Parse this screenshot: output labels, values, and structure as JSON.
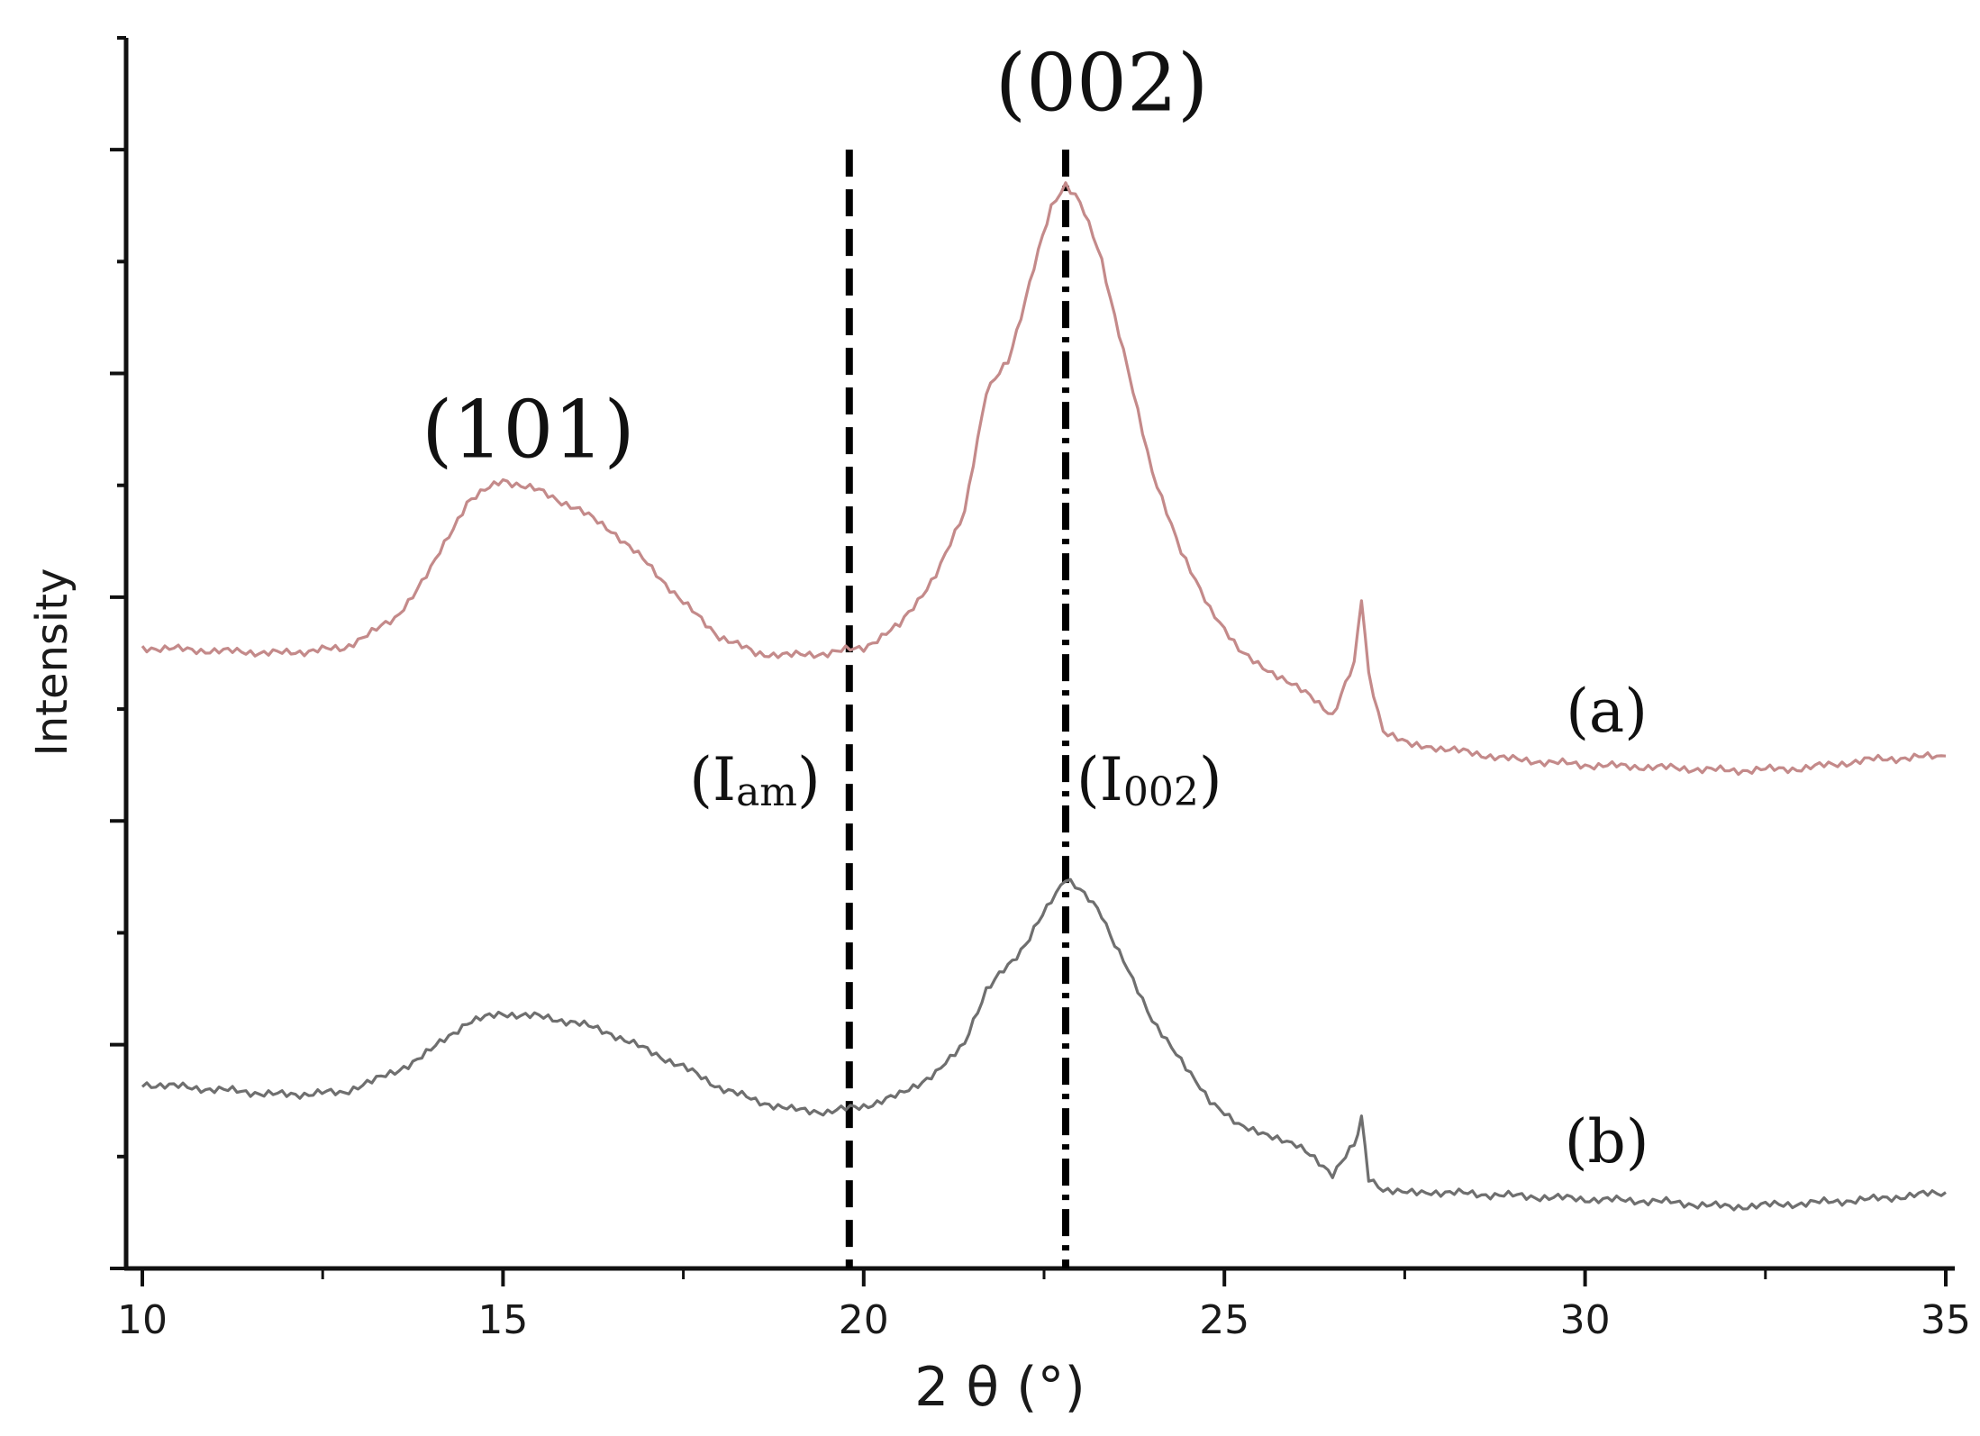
{
  "chart_data": {
    "type": "line",
    "title": "",
    "xlabel": "2 θ (°)",
    "ylabel": "Intensity",
    "xlim": [
      10,
      35
    ],
    "ylim": [
      0,
      11
    ],
    "x_ticks": [
      10,
      15,
      20,
      25,
      30,
      35
    ],
    "x_tick_labels": [
      "10",
      "15",
      "20",
      "25",
      "30",
      "35"
    ],
    "y_ticks": [
      0,
      1,
      2,
      3,
      4,
      5,
      6,
      7,
      8,
      9,
      10,
      11
    ],
    "y_tick_labels_shown": false,
    "grid": false,
    "series": [
      {
        "name": "(a)",
        "color": "#c48a8a",
        "x": [
          10.0,
          11.0,
          12.0,
          12.8,
          13.5,
          14.0,
          14.5,
          15.0,
          15.5,
          16.0,
          16.5,
          17.0,
          17.5,
          18.0,
          18.5,
          19.0,
          19.5,
          20.0,
          20.5,
          21.0,
          21.4,
          21.7,
          22.0,
          22.3,
          22.6,
          22.8,
          23.0,
          23.3,
          23.6,
          24.0,
          24.4,
          24.8,
          25.2,
          25.6,
          26.0,
          26.5,
          26.8,
          26.9,
          27.0,
          27.2,
          27.6,
          28.0,
          29.0,
          30.0,
          31.0,
          32.0,
          33.0,
          34.0,
          35.0
        ],
        "y": [
          5.55,
          5.52,
          5.5,
          5.55,
          5.8,
          6.25,
          6.85,
          7.05,
          6.95,
          6.8,
          6.6,
          6.3,
          5.95,
          5.65,
          5.5,
          5.48,
          5.5,
          5.55,
          5.75,
          6.2,
          6.75,
          7.85,
          8.1,
          8.8,
          9.5,
          9.7,
          9.55,
          9.0,
          8.2,
          7.1,
          6.4,
          5.9,
          5.55,
          5.35,
          5.2,
          4.95,
          5.4,
          6.0,
          5.3,
          4.8,
          4.7,
          4.65,
          4.55,
          4.5,
          4.48,
          4.45,
          4.47,
          4.55,
          4.58
        ]
      },
      {
        "name": "(b)",
        "color": "#6f6f6f",
        "x": [
          10.0,
          11.0,
          12.0,
          12.8,
          13.5,
          14.0,
          14.5,
          15.0,
          15.5,
          16.0,
          16.5,
          17.0,
          17.5,
          18.0,
          18.5,
          19.0,
          19.5,
          20.0,
          20.5,
          21.0,
          21.4,
          21.7,
          22.0,
          22.3,
          22.6,
          22.8,
          23.0,
          23.3,
          23.6,
          24.0,
          24.4,
          24.8,
          25.2,
          25.6,
          26.0,
          26.5,
          26.8,
          26.9,
          27.0,
          27.2,
          27.6,
          28.0,
          29.0,
          30.0,
          31.0,
          32.0,
          33.0,
          34.0,
          35.0
        ],
        "y": [
          1.65,
          1.6,
          1.55,
          1.58,
          1.75,
          1.95,
          2.2,
          2.28,
          2.25,
          2.2,
          2.1,
          1.95,
          1.8,
          1.62,
          1.5,
          1.42,
          1.4,
          1.45,
          1.55,
          1.75,
          2.0,
          2.5,
          2.7,
          2.95,
          3.3,
          3.5,
          3.4,
          3.15,
          2.75,
          2.2,
          1.85,
          1.5,
          1.3,
          1.2,
          1.1,
          0.85,
          1.1,
          1.35,
          0.8,
          0.7,
          0.7,
          0.68,
          0.65,
          0.62,
          0.6,
          0.55,
          0.58,
          0.62,
          0.68
        ]
      }
    ],
    "reference_lines": [
      {
        "x": 19.8,
        "style": "dashed",
        "y_top": 10.0,
        "label": "(I",
        "label_sub": "am",
        "label_close": ")"
      },
      {
        "x": 22.8,
        "style": "dashdot",
        "y_top": 10.0,
        "label": "(I",
        "label_sub": "002",
        "label_close": ")"
      }
    ],
    "annotations": [
      {
        "text": "(101)",
        "x": 15.35,
        "y": 7.25
      },
      {
        "text": "(002)",
        "x": 23.3,
        "y": 10.35
      },
      {
        "text": "(a)",
        "x": 30.3,
        "y": 4.8
      },
      {
        "text": "(b)",
        "x": 30.3,
        "y": 0.95
      }
    ]
  }
}
